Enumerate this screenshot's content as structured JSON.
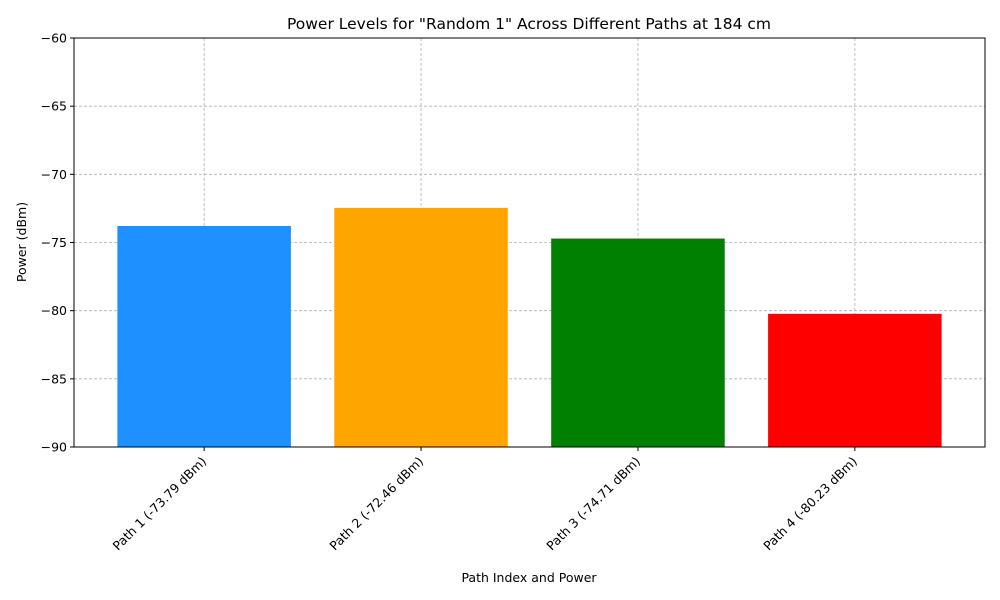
{
  "chart_data": {
    "type": "bar",
    "title": "Power Levels for \"Random 1\" Across Different Paths at 184 cm",
    "xlabel": "Path Index and Power",
    "ylabel": "Power (dBm)",
    "categories": [
      "Path 1 (-73.79 dBm)",
      "Path 2 (-72.46 dBm)",
      "Path 3 (-74.71 dBm)",
      "Path 4 (-80.23 dBm)"
    ],
    "values": [
      -73.79,
      -72.46,
      -74.71,
      -80.23
    ],
    "colors": [
      "#1e90ff",
      "#ffa500",
      "#008000",
      "#ff0000"
    ],
    "ylim": [
      -90,
      -60
    ],
    "yticks": [
      -90,
      -85,
      -80,
      -75,
      -70,
      -65,
      -60
    ],
    "ytick_labels": [
      "−90",
      "−85",
      "−80",
      "−75",
      "−70",
      "−65",
      "−60"
    ],
    "grid": true,
    "legend": "none"
  }
}
